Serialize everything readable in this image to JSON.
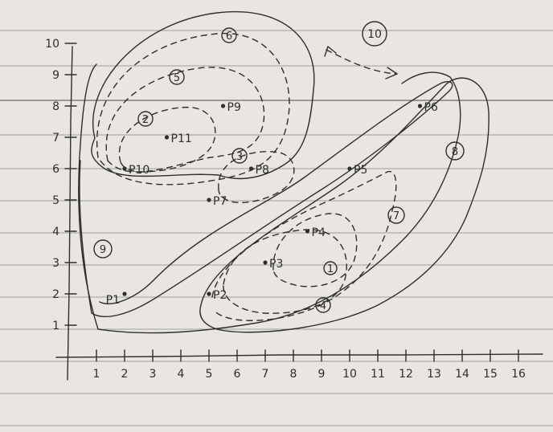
{
  "axes": {
    "x_ticks": [
      "1",
      "2",
      "3",
      "4",
      "5",
      "6",
      "7",
      "8",
      "9",
      "10",
      "11",
      "12",
      "13",
      "14",
      "15",
      "16"
    ],
    "y_ticks": [
      "1",
      "2",
      "3",
      "4",
      "5",
      "6",
      "7",
      "8",
      "9",
      "10"
    ]
  },
  "points": [
    {
      "label": "P1",
      "x": 2,
      "y": 2
    },
    {
      "label": "P2",
      "x": 5,
      "y": 2
    },
    {
      "label": "P3",
      "x": 7,
      "y": 3
    },
    {
      "label": "P4",
      "x": 8.5,
      "y": 4
    },
    {
      "label": "P5",
      "x": 10,
      "y": 6
    },
    {
      "label": "P6",
      "x": 12.5,
      "y": 8
    },
    {
      "label": "P7",
      "x": 5,
      "y": 5
    },
    {
      "label": "P8",
      "x": 6.5,
      "y": 6
    },
    {
      "label": "P9",
      "x": 5.5,
      "y": 8
    },
    {
      "label": "P10",
      "x": 2,
      "y": 6
    },
    {
      "label": "P11",
      "x": 3.5,
      "y": 7
    }
  ],
  "cluster_markers": [
    "1",
    "2",
    "3",
    "4",
    "5",
    "6",
    "7",
    "8",
    "9",
    "10"
  ]
}
